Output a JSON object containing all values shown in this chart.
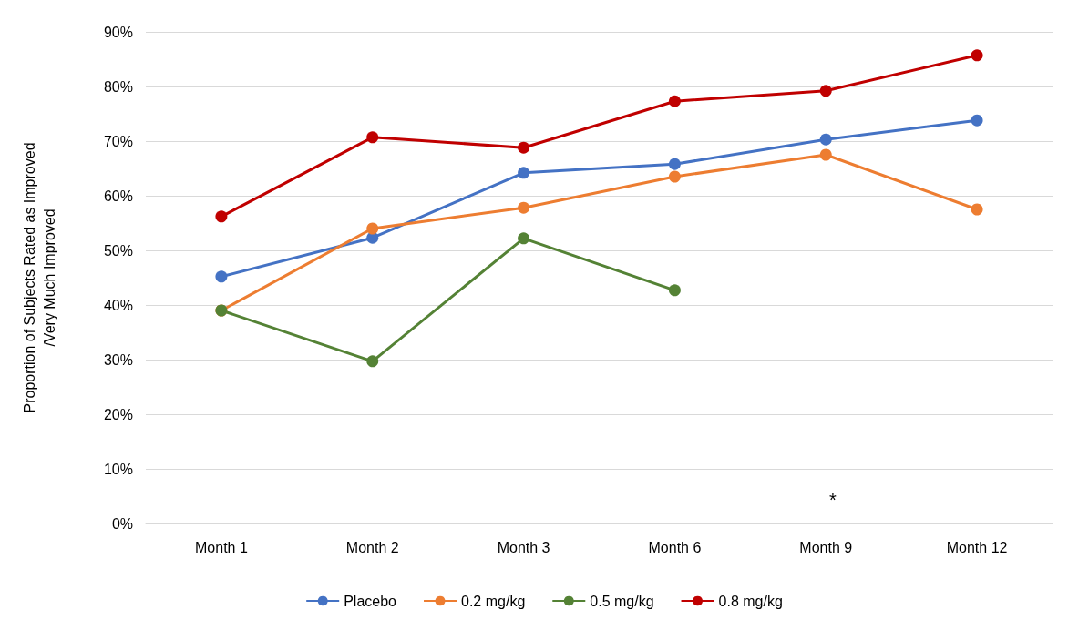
{
  "chart_data": {
    "type": "line",
    "ylabel": "Proportion of Subjects Rated as Improved\n/Very Much Improved",
    "categories": [
      "Month 1",
      "Month 2",
      "Month 3",
      "Month 6",
      "Month 9",
      "Month 12"
    ],
    "series": [
      {
        "name": "Placebo",
        "color": "#4472c4",
        "values": [
          45.2,
          52.3,
          64.2,
          65.8,
          70.3,
          73.8
        ]
      },
      {
        "name": "0.2 mg/kg",
        "color": "#ed7d31",
        "values": [
          39,
          54,
          57.8,
          63.5,
          67.5,
          57.5
        ]
      },
      {
        "name": "0.5 mg/kg",
        "color": "#548235",
        "values": [
          39,
          29.7,
          52.2,
          42.7,
          null,
          null
        ]
      },
      {
        "name": "0.8 mg/kg",
        "color": "#c00000",
        "values": [
          56.2,
          70.7,
          68.8,
          77.3,
          79.2,
          85.7
        ]
      }
    ],
    "ylim": [
      0,
      90
    ],
    "yticks": [
      {
        "value": 0,
        "label": "0%"
      },
      {
        "value": 10,
        "label": "10%"
      },
      {
        "value": 20,
        "label": "20%"
      },
      {
        "value": 30,
        "label": "30%"
      },
      {
        "value": 40,
        "label": "40%"
      },
      {
        "value": 50,
        "label": "50%"
      },
      {
        "value": 60,
        "label": "60%"
      },
      {
        "value": 70,
        "label": "70%"
      },
      {
        "value": 80,
        "label": "80%"
      },
      {
        "value": 90,
        "label": "90%"
      }
    ],
    "annotations": [
      "*"
    ],
    "grid": "y",
    "legend": "bottom",
    "marker": "circle",
    "line_style": "solid"
  }
}
